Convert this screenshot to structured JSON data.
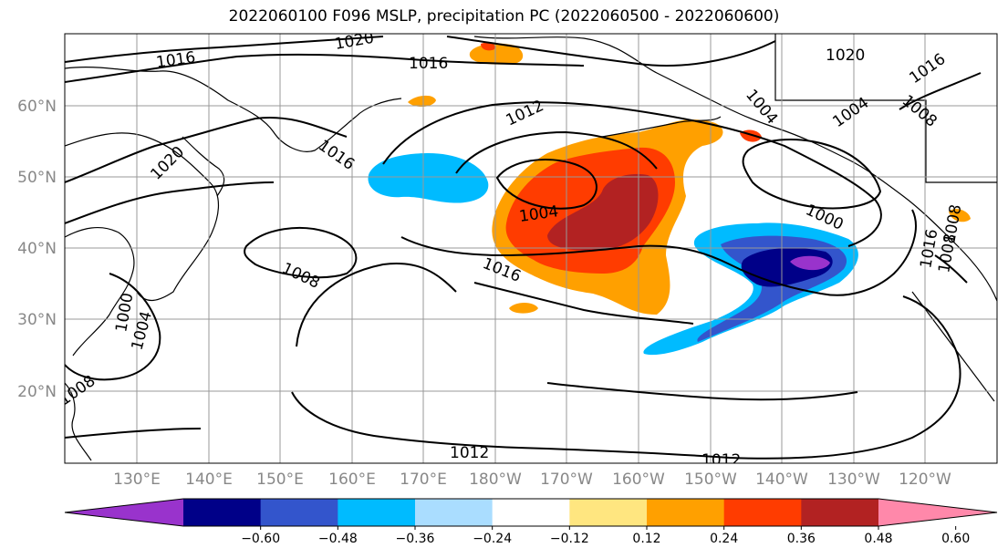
{
  "title": "2022060100 F096 MSLP, precipitation PC (2022060500 - 2022060600)",
  "lat_labels": [
    "60°N",
    "50°N",
    "40°N",
    "30°N",
    "20°N"
  ],
  "lon_labels": [
    "130°E",
    "140°E",
    "150°E",
    "160°E",
    "170°E",
    "180°W",
    "170°W",
    "160°W",
    "150°W",
    "140°W",
    "130°W",
    "120°W"
  ],
  "isobar_labels": [
    "1020",
    "1016",
    "1016",
    "1020",
    "1016",
    "1020",
    "1016",
    "1012",
    "1004",
    "1004",
    "1008",
    "1016",
    "1004",
    "1000",
    "1008",
    "1016",
    "1008",
    "1000",
    "1004",
    "1008",
    "1012",
    "1012",
    "1008"
  ],
  "colorbar": {
    "colors": [
      "#9933cc",
      "#000088",
      "#3355cc",
      "#00bbff",
      "#aaddff",
      "#ffffff",
      "#ffe680",
      "#ffa000",
      "#ff3c00",
      "#b22222",
      "#ff88aa"
    ],
    "tick_labels": [
      "-0.60",
      "-0.48",
      "-0.36",
      "-0.24",
      "-0.12",
      "0.12",
      "0.24",
      "0.36",
      "0.48",
      "0.60"
    ]
  }
}
